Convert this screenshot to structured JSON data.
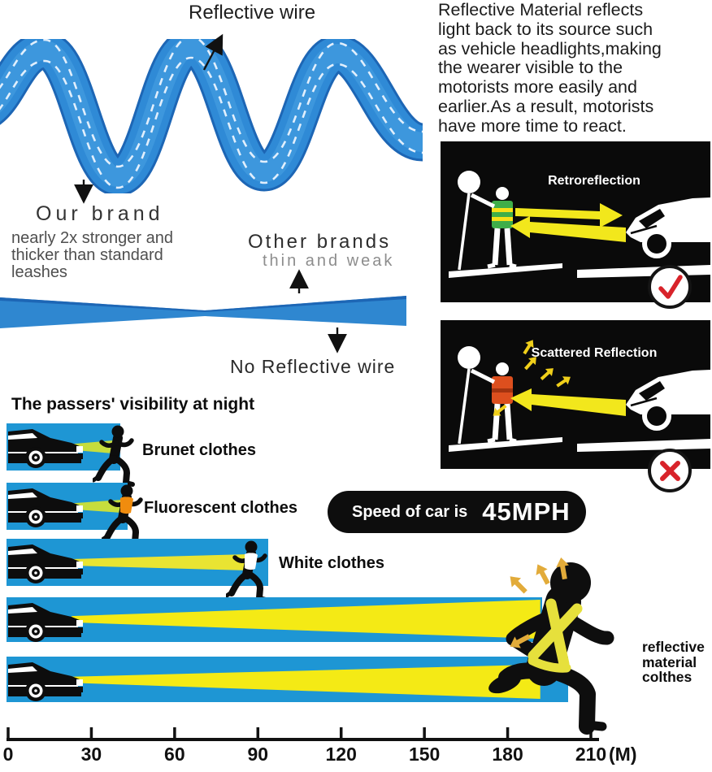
{
  "colors": {
    "band_blue": "#1e96d4",
    "ribbon_blue": "#2f8ad6",
    "beam_green_yellow": "#c6dd3d",
    "beam_yellow": "#f4ea15",
    "panel_black": "#0a0a0a",
    "result_red": "#d8232a",
    "vest_green": "#3fae49",
    "vest_orange": "#dd4f1e",
    "reflect_gold": "#e2ab3a"
  },
  "top_left": {
    "reflective_wire_label": "Reflective wire",
    "our_brand_title": "Our brand",
    "our_brand_desc": [
      "nearly 2x stronger and",
      "thicker than standard",
      "leashes"
    ],
    "other_brands_title": "Other brands",
    "other_brands_sub": "thin and weak",
    "no_reflective_label": "No Reflective wire"
  },
  "intro_paragraph": [
    "Reflective Material reflects",
    "light back to its source such",
    "as vehicle headlights,making",
    "the wearer visible to the",
    "motorists more easily and",
    "earlier.As a result, motorists",
    "have more time to react."
  ],
  "diagrams": [
    {
      "title": "Retroreflection",
      "result": "check"
    },
    {
      "title": "Scattered Reflection",
      "result": "cross"
    }
  ],
  "speed_badge": {
    "prefix": "Speed of car is",
    "value": "45MPH"
  },
  "chart_data": {
    "type": "bar",
    "title": "The passers' visibility at night",
    "categories": [
      "Brunet clothes",
      "Fluorescent clothes",
      "White clothes",
      "reflective material\ncolthes"
    ],
    "values": [
      37,
      40,
      85,
      190
    ],
    "unit": "M",
    "x_ticks": [
      0,
      30,
      60,
      90,
      120,
      150,
      180,
      210
    ],
    "xlim": [
      0,
      212
    ],
    "x_axis_label": "(M)",
    "annotation": "Speed of car is 45MPH",
    "legend": "none",
    "grid": false
  }
}
